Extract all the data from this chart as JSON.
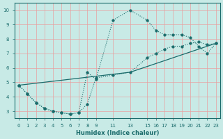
{
  "title": "",
  "xlabel": "Humidex (Indice chaleur)",
  "bg_color": "#c8eae6",
  "grid_color": "#e8a0a0",
  "line_color": "#1a6b6b",
  "xlim": [
    -0.5,
    23.5
  ],
  "ylim": [
    2.5,
    10.5
  ],
  "xticks": [
    0,
    1,
    2,
    3,
    4,
    5,
    6,
    7,
    8,
    9,
    11,
    13,
    15,
    16,
    17,
    18,
    19,
    20,
    21,
    22,
    23
  ],
  "yticks": [
    3,
    4,
    5,
    6,
    7,
    8,
    9,
    10
  ],
  "line1_x": [
    0,
    1,
    2,
    3,
    4,
    5,
    6,
    7,
    8,
    9,
    11,
    13,
    15,
    16,
    17,
    18,
    19,
    20,
    21,
    22,
    23
  ],
  "line1_y": [
    4.8,
    4.2,
    3.6,
    3.2,
    3.0,
    2.9,
    2.8,
    2.9,
    5.7,
    5.2,
    9.3,
    10.0,
    9.3,
    8.6,
    8.3,
    8.3,
    8.3,
    8.1,
    7.5,
    7.0,
    7.7
  ],
  "line2_x": [
    0,
    1,
    2,
    3,
    4,
    5,
    6,
    7,
    8,
    9,
    11,
    13,
    15,
    16,
    17,
    18,
    19,
    20,
    21,
    22,
    23
  ],
  "line2_y": [
    4.8,
    4.2,
    3.6,
    3.2,
    3.0,
    2.9,
    2.8,
    2.9,
    3.5,
    5.3,
    5.5,
    5.7,
    6.7,
    7.0,
    7.3,
    7.5,
    7.5,
    7.7,
    7.8,
    7.6,
    7.7
  ],
  "line3_x": [
    0,
    13,
    23
  ],
  "line3_y": [
    4.8,
    5.7,
    7.7
  ],
  "xlabel_fontsize": 6.0,
  "tick_fontsize": 5.0
}
